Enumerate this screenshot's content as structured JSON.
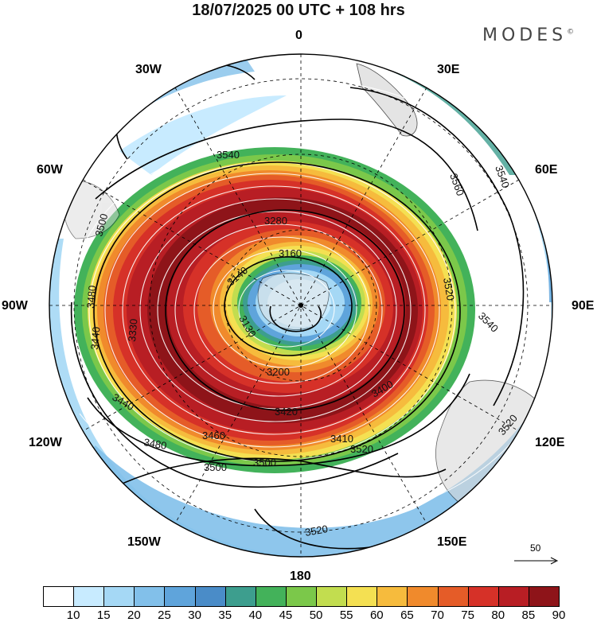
{
  "header": {
    "title": "18/07/2025  00 UTC  + 108 hrs",
    "brand": "MODES",
    "brand_mark": "©"
  },
  "map": {
    "projection": "polar-stereographic-south",
    "longitude_labels": {
      "top": "0",
      "top_left": "30W",
      "top_right": "30E",
      "upper_left": "60W",
      "upper_right": "60E",
      "left": "90W",
      "right": "90E",
      "lower_left": "120W",
      "lower_right": "120E",
      "bottom_left": "150W",
      "bottom_right": "150E",
      "bottom": "180"
    },
    "contour_labels": [
      "3540",
      "3560",
      "3540",
      "3500",
      "3480",
      "3440",
      "3440",
      "3460",
      "3480",
      "3500",
      "3500",
      "3520",
      "3520",
      "3520",
      "3520",
      "3540",
      "3160",
      "3140",
      "3330",
      "3200",
      "3280",
      "3420",
      "3400",
      "3410",
      "3130"
    ],
    "colors": {
      "coast": "#000000",
      "streamline": "#ffffff",
      "contour": "#000000"
    }
  },
  "reference_vector": {
    "label": "50"
  },
  "colorbar": {
    "ticks": [
      "10",
      "15",
      "20",
      "25",
      "30",
      "35",
      "40",
      "45",
      "50",
      "55",
      "60",
      "65",
      "70",
      "75",
      "80",
      "85",
      "90"
    ],
    "colors": [
      "#ffffff",
      "#c8ebff",
      "#a5d8f5",
      "#82c0ea",
      "#5fa4db",
      "#4a8cc8",
      "#3d9e8e",
      "#43b25a",
      "#7bc84a",
      "#c2dd4f",
      "#f4e052",
      "#f6bb3d",
      "#f08a2c",
      "#e55c28",
      "#d63128",
      "#b81e24",
      "#8e1419"
    ]
  }
}
